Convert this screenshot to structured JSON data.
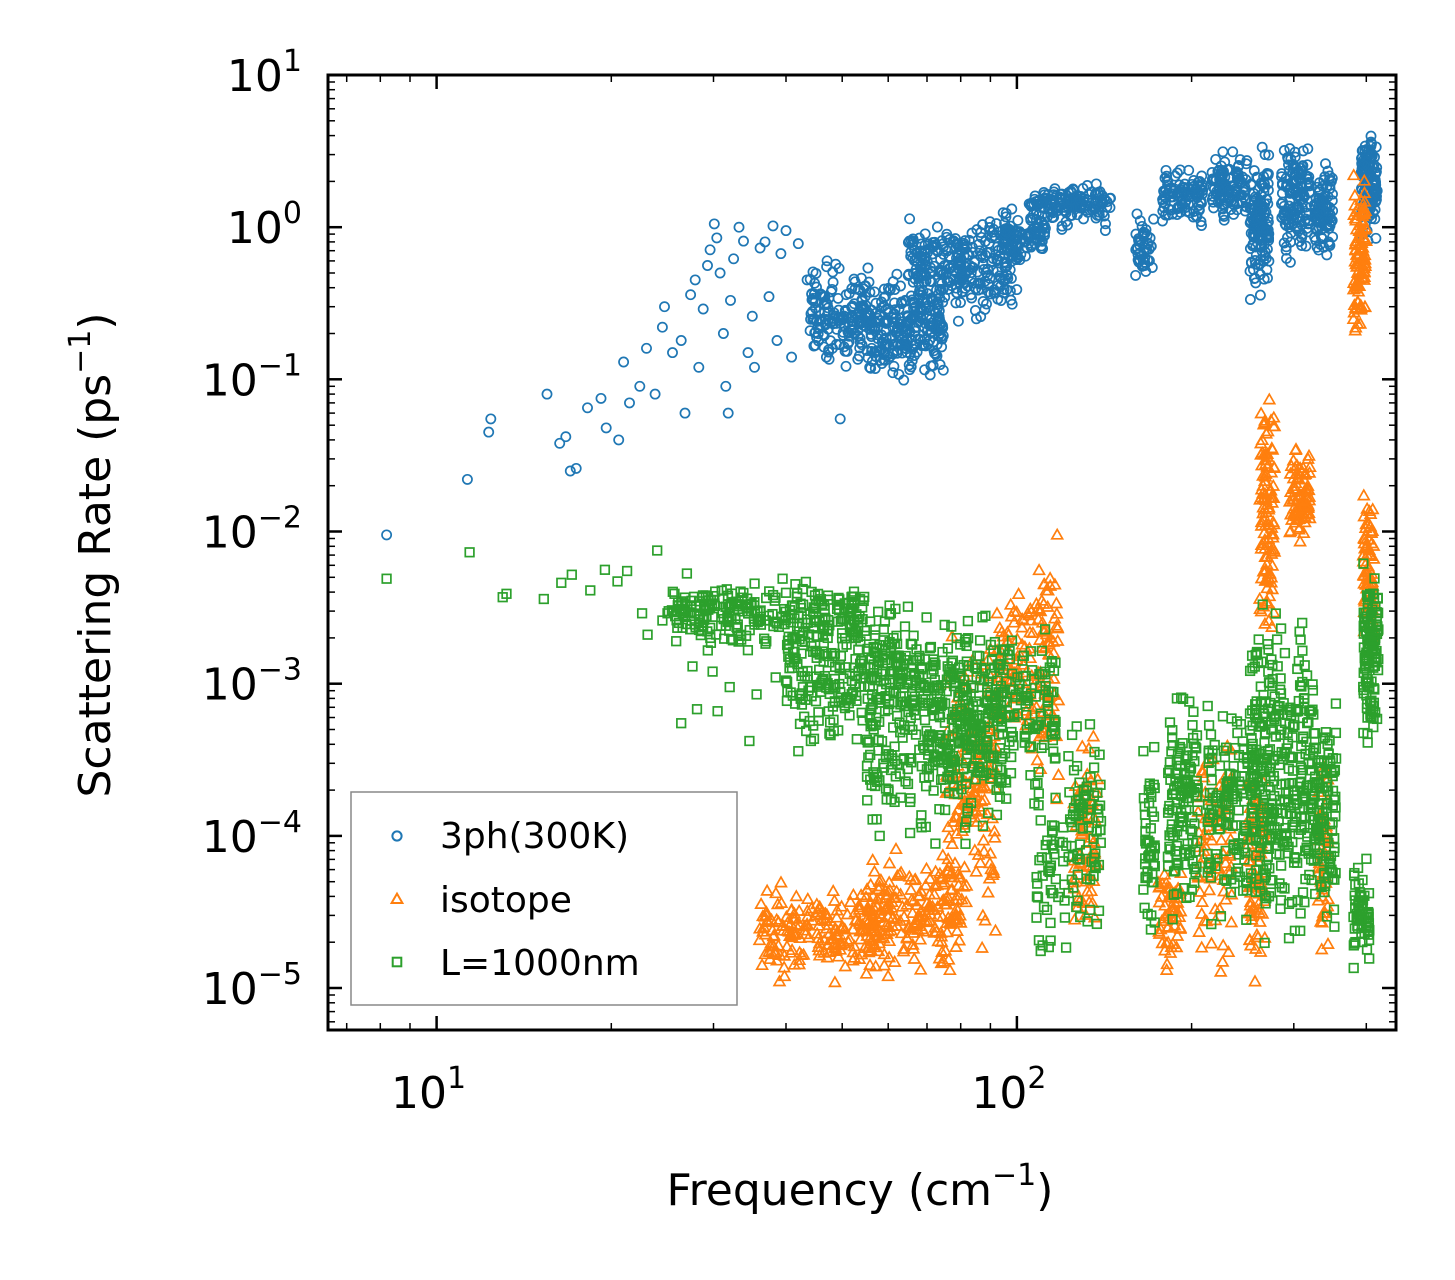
{
  "chart_data": {
    "type": "scatter",
    "xscale": "log",
    "yscale": "log",
    "xlim": [
      6.5,
      450
    ],
    "ylim": [
      5.3e-06,
      10
    ],
    "xlabel": "Frequency (cm",
    "xlabel_exp": "−1",
    "xlabel_close": ")",
    "ylabel": "Scattering Rate (ps",
    "ylabel_exp": "−1",
    "ylabel_close": ")",
    "x_major_ticks": [
      {
        "value": 10,
        "base": "10",
        "exp": "1"
      },
      {
        "value": 100,
        "base": "10",
        "exp": "2"
      }
    ],
    "y_major_ticks": [
      {
        "value": 10,
        "base": "10",
        "exp": "1"
      },
      {
        "value": 1,
        "base": "10",
        "exp": "0"
      },
      {
        "value": 0.1,
        "base": "10",
        "exp": "−1"
      },
      {
        "value": 0.01,
        "base": "10",
        "exp": "−2"
      },
      {
        "value": 0.001,
        "base": "10",
        "exp": "−3"
      },
      {
        "value": 0.0001,
        "base": "10",
        "exp": "−4"
      },
      {
        "value": 1e-05,
        "base": "10",
        "exp": "−5"
      }
    ],
    "legend_position": "lower-left",
    "series": [
      {
        "name": "3ph(300K)",
        "marker": "circle",
        "color": "#1f77b4",
        "points": [
          [
            8.2,
            0.0095
          ],
          [
            11.3,
            0.022
          ],
          [
            12.3,
            0.045
          ],
          [
            12.4,
            0.055
          ],
          [
            15.5,
            0.08
          ],
          [
            16.3,
            0.038
          ],
          [
            16.7,
            0.042
          ],
          [
            17.0,
            0.025
          ],
          [
            17.4,
            0.026
          ],
          [
            18.2,
            0.065
          ],
          [
            19.2,
            0.075
          ],
          [
            19.6,
            0.048
          ],
          [
            20.6,
            0.04
          ],
          [
            21.0,
            0.13
          ],
          [
            21.5,
            0.07
          ],
          [
            22.4,
            0.09
          ],
          [
            23.0,
            0.16
          ],
          [
            23.8,
            0.08
          ],
          [
            24.5,
            0.22
          ],
          [
            24.7,
            0.3
          ],
          [
            25.5,
            0.15
          ],
          [
            26.4,
            0.18
          ],
          [
            26.8,
            0.06
          ],
          [
            27.4,
            0.36
          ],
          [
            27.9,
            0.45
          ],
          [
            28.3,
            0.12
          ],
          [
            28.8,
            0.29
          ],
          [
            29.3,
            0.56
          ],
          [
            29.6,
            0.71
          ],
          [
            30.1,
            1.05
          ],
          [
            30.4,
            0.85
          ],
          [
            30.8,
            0.5
          ],
          [
            31.2,
            0.2
          ],
          [
            31.5,
            0.09
          ],
          [
            31.8,
            0.06
          ],
          [
            32.1,
            0.33
          ],
          [
            32.5,
            0.62
          ],
          [
            33.2,
            1.0
          ],
          [
            33.8,
            0.81
          ],
          [
            34.4,
            0.15
          ],
          [
            35.0,
            0.26
          ],
          [
            35.3,
            0.12
          ],
          [
            36.1,
            0.73
          ],
          [
            36.8,
            0.8
          ],
          [
            37.4,
            0.35
          ],
          [
            38.0,
            1.02
          ],
          [
            38.6,
            0.18
          ],
          [
            39.2,
            0.67
          ],
          [
            40.0,
            0.95
          ],
          [
            40.9,
            0.14
          ],
          [
            42.0,
            0.78
          ],
          [
            43.5,
            0.45
          ],
          [
            45.2,
            0.24
          ],
          [
            47.0,
            0.55
          ],
          [
            48.1,
            0.16
          ],
          [
            49.6,
            0.055
          ]
        ],
        "bands": [
          [
            44,
            55,
            0.1,
            0.7,
            160
          ],
          [
            55,
            75,
            0.08,
            0.62,
            260
          ],
          [
            65,
            82,
            0.25,
            1.2,
            140
          ],
          [
            78,
            100,
            0.2,
            1.5,
            150
          ],
          [
            95,
            112,
            0.5,
            1.4,
            90
          ],
          [
            105,
            145,
            0.9,
            2.1,
            150
          ],
          [
            160,
            172,
            0.35,
            1.8,
            45
          ],
          [
            178,
            210,
            0.9,
            2.8,
            100
          ],
          [
            215,
            250,
            1.0,
            3.4,
            110
          ],
          [
            252,
            272,
            0.27,
            4.0,
            140
          ],
          [
            285,
            320,
            0.5,
            5.0,
            140
          ],
          [
            325,
            350,
            0.55,
            3.0,
            90
          ],
          [
            392,
            418,
            0.7,
            5.5,
            130
          ]
        ]
      },
      {
        "name": "isotope",
        "marker": "triangle",
        "color": "#ff7f0e",
        "points": [],
        "bands": [
          [
            36,
            58,
            1e-05,
            5.5e-05,
            200
          ],
          [
            55,
            80,
            1e-05,
            0.0001,
            200
          ],
          [
            75,
            92,
            1e-05,
            0.0045,
            160
          ],
          [
            92,
            107,
            0.0003,
            0.005,
            80
          ],
          [
            108,
            118,
            0.00012,
            0.016,
            70
          ],
          [
            125,
            138,
            1e-05,
            0.0009,
            70
          ],
          [
            175,
            192,
            1e-05,
            0.0001,
            60
          ],
          [
            205,
            235,
            1e-05,
            0.0008,
            80
          ],
          [
            250,
            268,
            1e-05,
            0.00045,
            90
          ],
          [
            262,
            278,
            0.0012,
            0.19,
            110
          ],
          [
            295,
            320,
            0.0055,
            0.045,
            90
          ],
          [
            330,
            345,
            1e-05,
            0.0005,
            50
          ],
          [
            380,
            400,
            0.15,
            2.6,
            100
          ],
          [
            395,
            412,
            0.0012,
            0.028,
            70
          ]
        ]
      },
      {
        "name": "L=1000nm",
        "marker": "square",
        "color": "#2ca02c",
        "points": [
          [
            8.2,
            0.0049
          ],
          [
            11.4,
            0.0073
          ],
          [
            13.0,
            0.0037
          ],
          [
            13.2,
            0.0039
          ],
          [
            15.3,
            0.0036
          ],
          [
            16.4,
            0.0046
          ],
          [
            17.1,
            0.0052
          ],
          [
            18.4,
            0.0041
          ],
          [
            19.5,
            0.0056
          ],
          [
            20.5,
            0.0047
          ],
          [
            21.3,
            0.0055
          ],
          [
            22.6,
            0.0029
          ],
          [
            23.1,
            0.0021
          ],
          [
            24.0,
            0.0075
          ],
          [
            24.5,
            0.0026
          ],
          [
            25.0,
            0.0029
          ],
          [
            25.7,
            0.0039
          ],
          [
            26.4,
            0.00055
          ],
          [
            27.0,
            0.0053
          ],
          [
            27.6,
            0.0013
          ],
          [
            28.1,
            0.00068
          ],
          [
            29.1,
            0.0038
          ],
          [
            29.9,
            0.0012
          ],
          [
            30.5,
            0.00066
          ],
          [
            31.5,
            0.0024
          ],
          [
            32.0,
            0.00095
          ],
          [
            33.1,
            0.0031
          ],
          [
            34.6,
            0.00042
          ],
          [
            35.6,
            0.00085
          ],
          [
            37.0,
            0.0019
          ],
          [
            38.4,
            0.0011
          ],
          [
            40.3,
            0.0017
          ],
          [
            42.0,
            0.00036
          ],
          [
            44.0,
            0.00095
          ]
        ],
        "bands": [
          [
            25,
            55,
            0.0015,
            0.0055,
            260
          ],
          [
            40,
            70,
            0.0003,
            0.004,
            260
          ],
          [
            55,
            95,
            6e-05,
            0.004,
            300
          ],
          [
            70,
            118,
            0.00012,
            0.004,
            260
          ],
          [
            108,
            122,
            1e-05,
            0.0003,
            50
          ],
          [
            122,
            140,
            1e-05,
            0.0011,
            80
          ],
          [
            165,
            173,
            1e-05,
            0.0006,
            50
          ],
          [
            182,
            205,
            2e-05,
            0.0015,
            130
          ],
          [
            213,
            250,
            2e-05,
            0.0012,
            130
          ],
          [
            252,
            280,
            1e-05,
            0.0055,
            180
          ],
          [
            280,
            330,
            1.2e-05,
            0.0045,
            200
          ],
          [
            330,
            355,
            1.5e-05,
            0.001,
            90
          ],
          [
            380,
            405,
            1e-05,
            0.0001,
            60
          ],
          [
            395,
            420,
            0.0003,
            0.0099,
            130
          ]
        ]
      }
    ]
  }
}
